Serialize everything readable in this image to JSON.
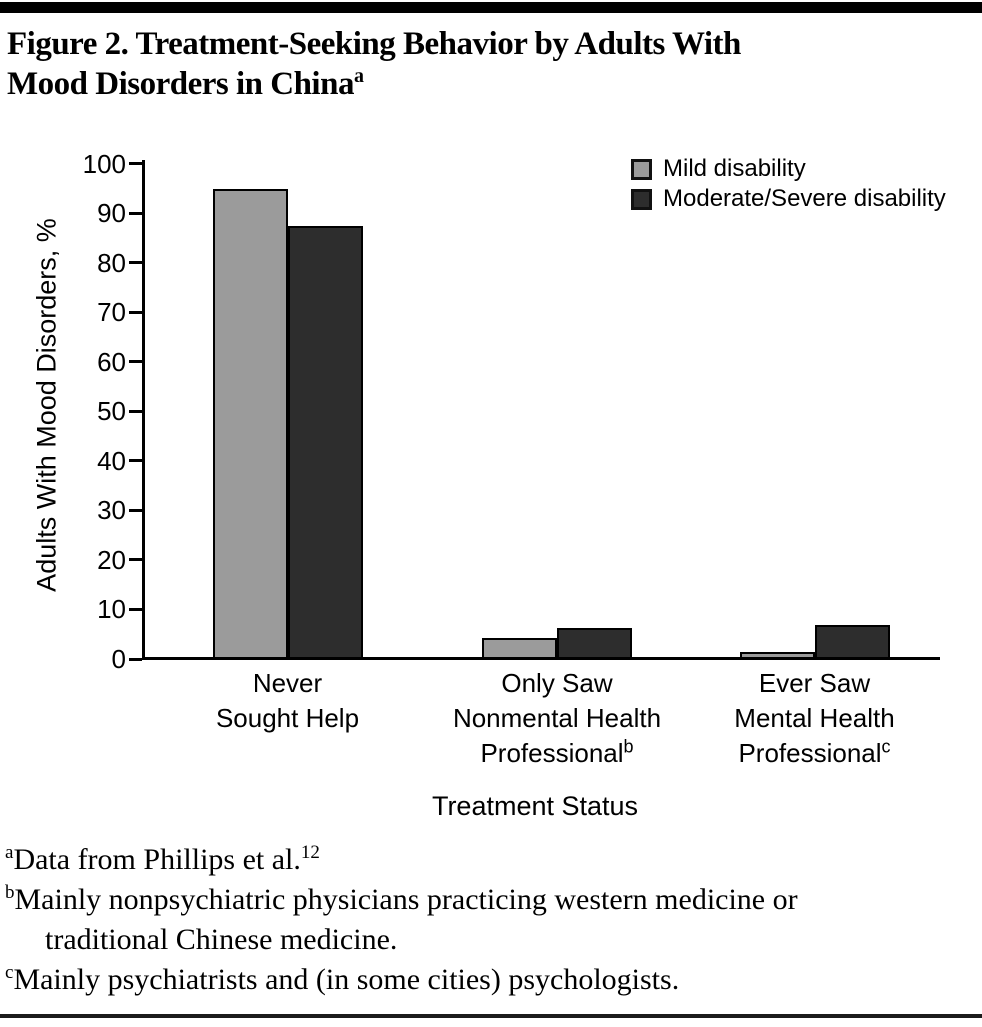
{
  "header": {
    "title_line1": "Figure 2. Treatment-Seeking Behavior by Adults With",
    "title_line2": "Mood Disorders in China",
    "title_sup": "a"
  },
  "chart_data": {
    "type": "bar",
    "title": "Figure 2. Treatment-Seeking Behavior by Adults With Mood Disorders in China",
    "categories": [
      "Never Sought Help",
      "Only Saw Nonmental Health Professional",
      "Ever Saw Mental Health Professional"
    ],
    "series": [
      {
        "name": "Mild disability",
        "color": "#9b9b9b",
        "values": [
          94.8,
          4.3,
          1.5
        ]
      },
      {
        "name": "Moderate/Severe disability",
        "color": "#2d2d2d",
        "values": [
          87.3,
          6.2,
          6.8
        ]
      }
    ],
    "xlabel": "Treatment Status",
    "ylabel": "Adults With Mood Disorders, %",
    "ylim": [
      0,
      100
    ],
    "ytick_step": 10,
    "yticks": [
      0,
      10,
      20,
      30,
      40,
      50,
      60,
      70,
      80,
      90,
      100
    ],
    "grid": false,
    "legend_position": "top-right",
    "bar_border_color": "#000000"
  },
  "x_category_display": [
    {
      "lines": [
        "Never",
        "Sought Help"
      ],
      "sup": ""
    },
    {
      "lines": [
        "Only Saw",
        "Nonmental Health",
        "Professional"
      ],
      "sup": "b"
    },
    {
      "lines": [
        "Ever Saw",
        "Mental Health",
        "Professional"
      ],
      "sup": "c"
    }
  ],
  "footnotes": [
    {
      "sup": "a",
      "text": "Data from Phillips et al.",
      "end_sup": "12",
      "cont": ""
    },
    {
      "sup": "b",
      "text": "Mainly nonpsychiatric physicians practicing western medicine or",
      "end_sup": "",
      "cont": "traditional Chinese medicine."
    },
    {
      "sup": "c",
      "text": "Mainly psychiatrists and (in some cities) psychologists.",
      "end_sup": "",
      "cont": ""
    }
  ],
  "colors": {
    "rule": "#000000",
    "axis": "#000000",
    "mild_bar": "#9b9b9b",
    "severe_bar": "#2d2d2d"
  }
}
